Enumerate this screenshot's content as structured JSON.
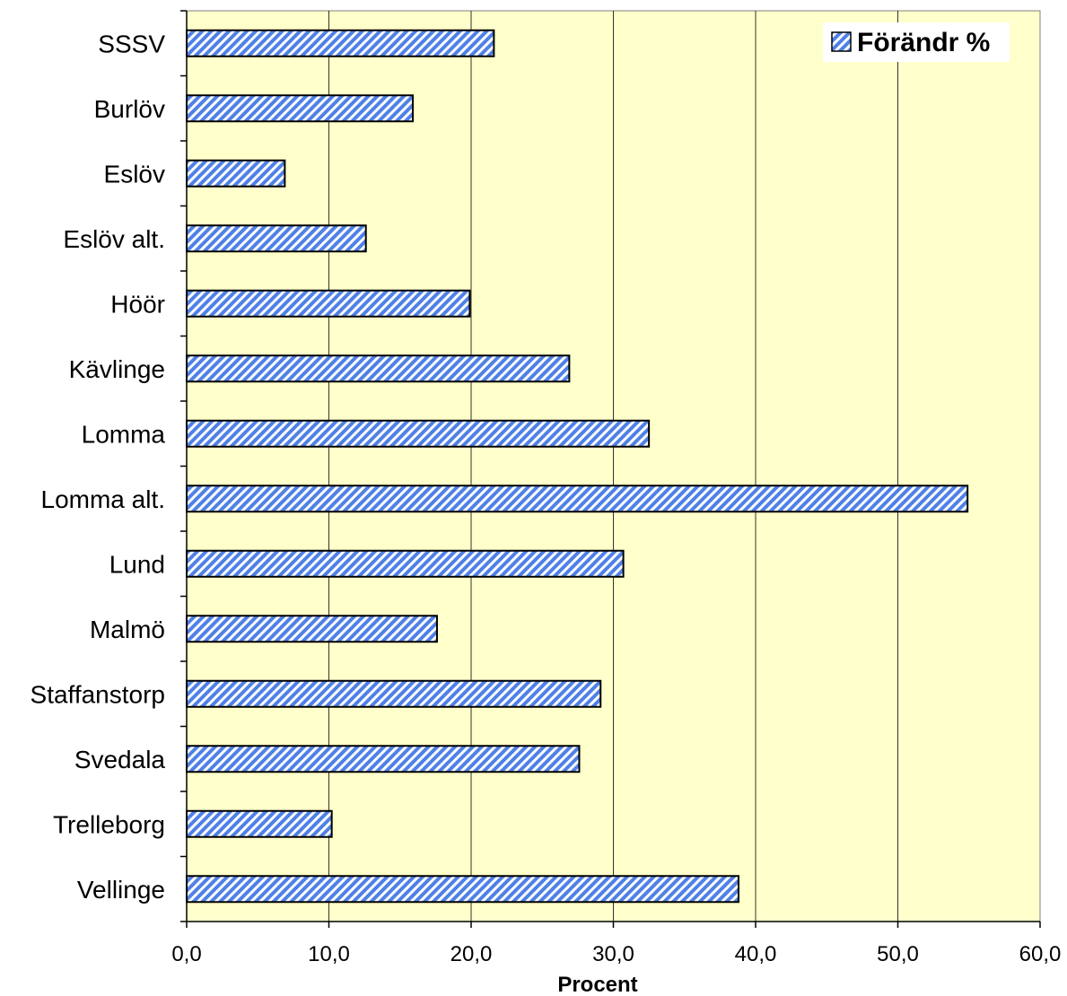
{
  "chart_data": {
    "type": "bar",
    "orientation": "horizontal",
    "categories": [
      "SSSV",
      "Burlöv",
      "Eslöv",
      "Eslöv alt.",
      "Höör",
      "Kävlinge",
      "Lomma",
      "Lomma alt.",
      "Lund",
      "Malmö",
      "Staffanstorp",
      "Svedala",
      "Trelleborg",
      "Vellinge"
    ],
    "series": [
      {
        "name": "Förändr %",
        "values": [
          21.6,
          15.9,
          6.9,
          12.6,
          19.9,
          26.9,
          32.5,
          54.9,
          30.7,
          17.6,
          29.1,
          27.6,
          10.2,
          38.8
        ]
      }
    ],
    "xlabel": "Procent",
    "ylabel": "",
    "title": "",
    "xlim": [
      0,
      60
    ],
    "xticks": [
      0,
      10,
      20,
      30,
      40,
      50,
      60
    ],
    "xtick_labels": [
      "0,0",
      "10,0",
      "20,0",
      "30,0",
      "40,0",
      "50,0",
      "60,0"
    ],
    "grid": "vertical",
    "legend_position": "top-right",
    "plot_background": "#ffffcc",
    "bar_color": "#4f81e6",
    "bar_hatch": "diagonal-stripes"
  }
}
